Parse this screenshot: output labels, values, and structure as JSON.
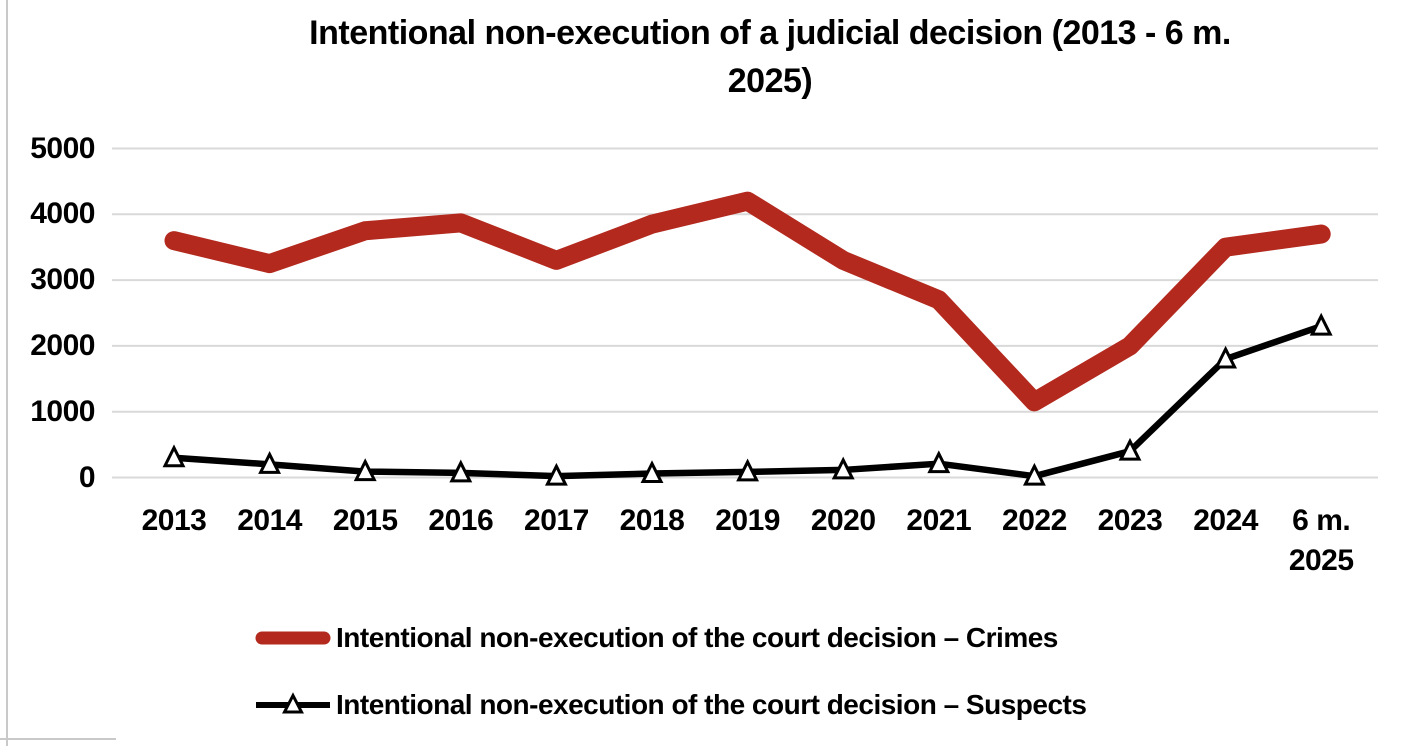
{
  "title": "Intentional non-execution of a judicial decision (2013 - 6 m.\n2025)",
  "chart_data": {
    "type": "line",
    "title": "Intentional non-execution of a judicial decision (2013 - 6 m. 2025)",
    "categories": [
      "2013",
      "2014",
      "2015",
      "2016",
      "2017",
      "2018",
      "2019",
      "2020",
      "2021",
      "2022",
      "2023",
      "2024",
      "6 m.\n2025"
    ],
    "series": [
      {
        "name": "Intentional non-execution of the court decision – Crimes",
        "color": "#b3291e",
        "line_width": 19,
        "marker": "none",
        "values": [
          3600,
          3250,
          3750,
          3870,
          3300,
          3850,
          4200,
          3300,
          2700,
          1150,
          2000,
          3500,
          3700
        ]
      },
      {
        "name": "Intentional non-execution of the court decision – Suspects",
        "color": "#000000",
        "line_width": 6.5,
        "marker": "triangle",
        "marker_fill": "#ffffff",
        "values": [
          300,
          200,
          90,
          70,
          20,
          60,
          85,
          115,
          210,
          20,
          400,
          1800,
          2300
        ]
      }
    ],
    "yticks": [
      5000,
      4000,
      3000,
      2000,
      1000,
      0
    ],
    "ylim": [
      0,
      5000
    ],
    "xlabel": "",
    "ylabel": "",
    "grid": true,
    "gridline_color": "#d9d9d9",
    "legend_position": "bottom"
  }
}
